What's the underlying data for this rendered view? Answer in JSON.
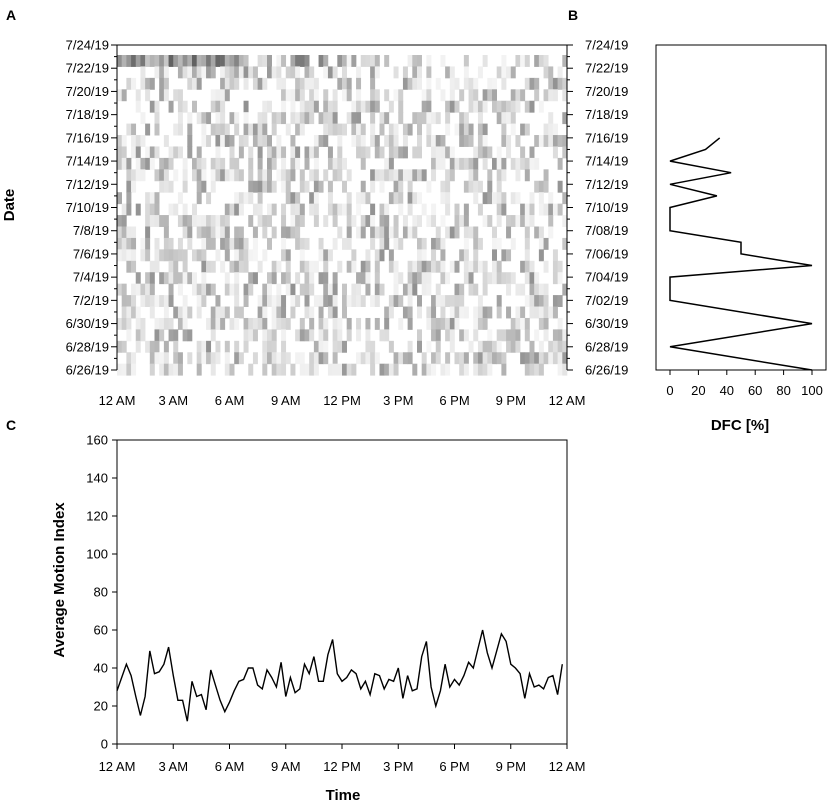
{
  "chart_data": [
    {
      "panel": "A",
      "type": "heatmap",
      "ylabel": "Date",
      "x_tick_labels": [
        "12 AM",
        "3 AM",
        "6 AM",
        "9 AM",
        "12 PM",
        "3 PM",
        "6 PM",
        "9 PM",
        "12 AM"
      ],
      "y_tick_labels_left": [
        "7/24/19",
        "7/22/19",
        "7/20/19",
        "7/18/19",
        "7/16/19",
        "7/14/19",
        "7/12/19",
        "7/10/19",
        "7/8/19",
        "7/6/19",
        "7/4/19",
        "7/2/19",
        "6/30/19",
        "6/28/19",
        "6/26/19"
      ],
      "y_tick_labels_right": [
        "7/24/19",
        "7/22/19",
        "7/20/19",
        "7/18/19",
        "7/16/19",
        "7/14/19",
        "7/12/19",
        "7/10/19",
        "7/08/19",
        "7/06/19",
        "7/04/19",
        "7/02/19",
        "6/30/19",
        "6/28/19",
        "6/26/19"
      ],
      "rows": 28,
      "columns": 96,
      "color_scale": [
        "#ffffff",
        "#3a3a3a"
      ]
    },
    {
      "panel": "B",
      "type": "line",
      "xlabel": "DFC [%]",
      "x_ticks": [
        0,
        20,
        40,
        60,
        80,
        100
      ],
      "xlim": [
        0,
        100
      ],
      "points": [
        {
          "date": "6/26/19",
          "value": 100
        },
        {
          "date": "6/28/19",
          "value": 0
        },
        {
          "date": "6/30/19",
          "value": 100
        },
        {
          "date": "6/30/19",
          "value": 100
        },
        {
          "date": "7/02/19",
          "value": 0
        },
        {
          "date": "7/04/19",
          "value": 0
        },
        {
          "date": "7/05/19",
          "value": 100
        },
        {
          "date": "7/06/19",
          "value": 50
        },
        {
          "date": "7/07/19",
          "value": 50
        },
        {
          "date": "7/08/19",
          "value": 0
        },
        {
          "date": "7/10/19",
          "value": 0
        },
        {
          "date": "7/11/19",
          "value": 33
        },
        {
          "date": "7/12/19",
          "value": 0
        },
        {
          "date": "7/13/19",
          "value": 43
        },
        {
          "date": "7/14/19",
          "value": 0
        },
        {
          "date": "7/15/19",
          "value": 25
        },
        {
          "date": "7/16/19",
          "value": 35
        }
      ]
    },
    {
      "panel": "C",
      "type": "line",
      "xlabel": "Time",
      "ylabel": "Average Motion Index",
      "ylim": [
        0,
        160
      ],
      "y_ticks": [
        0,
        20,
        40,
        60,
        80,
        100,
        120,
        140,
        160
      ],
      "x_tick_labels": [
        "12 AM",
        "3 AM",
        "6 AM",
        "9 AM",
        "12 PM",
        "3 PM",
        "6 PM",
        "9 PM",
        "12 AM"
      ],
      "x_range_hours": [
        0,
        24
      ],
      "sample_interval_minutes": 15,
      "values": [
        28,
        35,
        42,
        36,
        25,
        15,
        25,
        49,
        37,
        38,
        42,
        51,
        36,
        23,
        23,
        12,
        33,
        25,
        26,
        18,
        39,
        31,
        23,
        17,
        22,
        28,
        33,
        34,
        40,
        40,
        31,
        29,
        39,
        35,
        30,
        43,
        25,
        35,
        27,
        29,
        42,
        37,
        46,
        33,
        33,
        47,
        55,
        37,
        33,
        35,
        39,
        37,
        29,
        33,
        26,
        37,
        36,
        29,
        34,
        33,
        40,
        24,
        36,
        28,
        29,
        46,
        54,
        30,
        20,
        28,
        42,
        30,
        34,
        31,
        36,
        43,
        40,
        50,
        60,
        48,
        40,
        49,
        58,
        54,
        42,
        40,
        37,
        24,
        37,
        30,
        31,
        29,
        35,
        36,
        26,
        42
      ]
    }
  ]
}
